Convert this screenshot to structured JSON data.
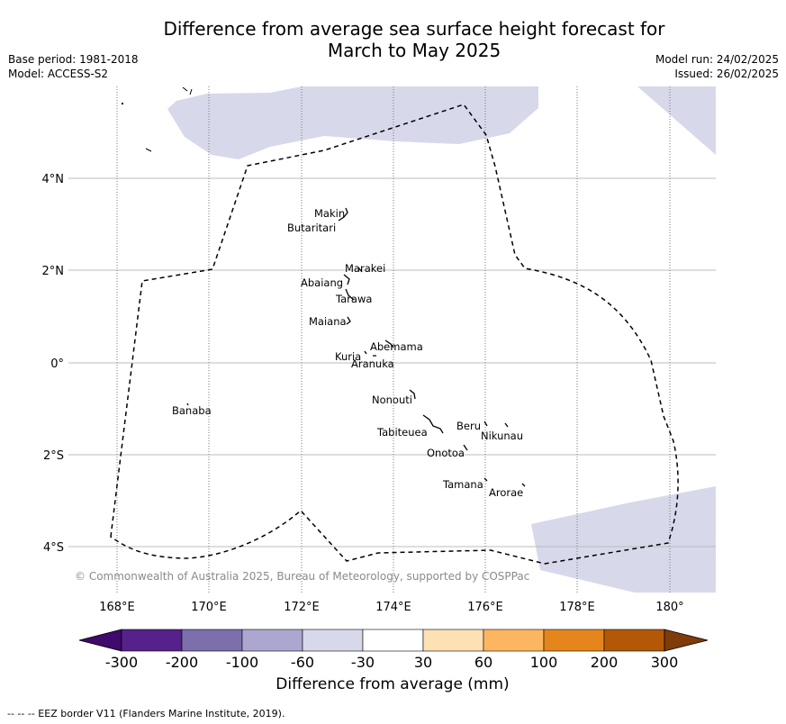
{
  "header": {
    "title_line1": "Difference from average sea surface height forecast for",
    "title_line2": "March to May 2025",
    "base_period": "Base period: 1981-2018",
    "model": "Model: ACCESS-S2",
    "model_run": "Model run: 24/02/2025",
    "issued": "Issued: 26/02/2025"
  },
  "map": {
    "lon_labels": [
      "168°E",
      "170°E",
      "172°E",
      "174°E",
      "176°E",
      "178°E",
      "180°"
    ],
    "lat_labels": [
      "4°N",
      "2°N",
      "0°",
      "2°S",
      "4°S"
    ],
    "credit": "© Commonwealth of Australia 2025, Bureau of Meteorology, supported by COSPPac",
    "islands": [
      "Makin",
      "Butaritari",
      "Marakei",
      "Abaiang",
      "Tarawa",
      "Maiana",
      "Abemama",
      "Kuria",
      "Aranuka",
      "Nonouti",
      "Banaba",
      "Beru",
      "Nikunau",
      "Tabiteuea",
      "Onotoa",
      "Tamana",
      "Arorae"
    ],
    "anomaly_fill_color": "#d7d8ea",
    "eez_line_color": "#000000"
  },
  "colorbar": {
    "title": "Difference from average (mm)",
    "tick_labels": [
      "-300",
      "-200",
      "-100",
      "-60",
      "-30",
      "30",
      "60",
      "100",
      "200",
      "300"
    ],
    "colors": [
      "#3f0a6b",
      "#56218b",
      "#7c6fac",
      "#aba7d0",
      "#d7d8ea",
      "#ffffff",
      "#fde0b4",
      "#fdb660",
      "#e5861c",
      "#b35806",
      "#7f3b08"
    ]
  },
  "footer": {
    "note": "--  --  -- EEZ border V11 (Flanders Marine Institute, 2019)."
  }
}
